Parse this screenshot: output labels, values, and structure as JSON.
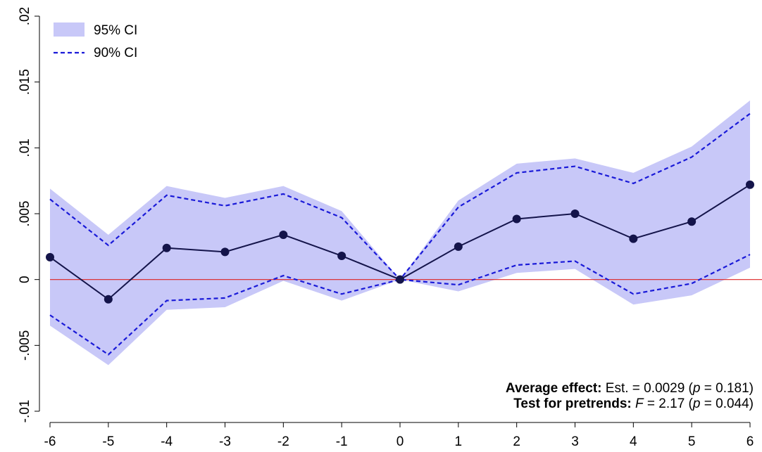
{
  "chart_data": {
    "type": "line",
    "title": "",
    "xlabel": "",
    "ylabel": "",
    "x": [
      -6,
      -5,
      -4,
      -3,
      -2,
      -1,
      0,
      1,
      2,
      3,
      4,
      5,
      6
    ],
    "xlim": [
      -6,
      6
    ],
    "ylim": [
      -0.01,
      0.02
    ],
    "x_ticks": [
      -6,
      -5,
      -4,
      -3,
      -2,
      -1,
      0,
      1,
      2,
      3,
      4,
      5,
      6
    ],
    "x_tick_labels": [
      "-6",
      "-5",
      "-4",
      "-3",
      "-2",
      "-1",
      "0",
      "1",
      "2",
      "3",
      "4",
      "5",
      "6"
    ],
    "y_ticks": [
      -0.01,
      -0.005,
      0,
      0.005,
      0.01,
      0.015,
      0.02
    ],
    "y_tick_labels": [
      "-.01",
      "-.005",
      "0",
      ".005",
      ".01",
      ".015",
      ".02"
    ],
    "grid": false,
    "legend_position": "top-left",
    "reference_line": {
      "y": 0,
      "color": "#dd2222"
    },
    "series": [
      {
        "kind": "point_estimate",
        "values": [
          0.0017,
          -0.0015,
          0.0024,
          0.0021,
          0.0034,
          0.0018,
          0.0,
          0.0025,
          0.0046,
          0.005,
          0.0031,
          0.0044,
          0.0072
        ],
        "color": "#14144a"
      },
      {
        "name": "95% CI",
        "kind": "band",
        "lower": [
          -0.0035,
          -0.0065,
          -0.0023,
          -0.0021,
          -0.0001,
          -0.0016,
          0.0,
          -0.0009,
          0.0005,
          0.0008,
          -0.0019,
          -0.0012,
          0.0009
        ],
        "upper": [
          0.0069,
          0.0034,
          0.0071,
          0.0062,
          0.0071,
          0.0052,
          0.0,
          0.006,
          0.0088,
          0.0092,
          0.0081,
          0.0101,
          0.0136
        ],
        "color": "#c8c8f8"
      },
      {
        "name": "90% CI",
        "kind": "dashed_bounds",
        "lower": [
          -0.0027,
          -0.0057,
          -0.0016,
          -0.0014,
          0.0003,
          -0.0011,
          0.0,
          -0.0004,
          0.0011,
          0.0014,
          -0.0011,
          -0.0003,
          0.0019
        ],
        "upper": [
          0.0061,
          0.0026,
          0.0064,
          0.0056,
          0.0065,
          0.0047,
          0.0,
          0.0055,
          0.0081,
          0.0086,
          0.0073,
          0.0093,
          0.0126
        ],
        "color": "#1a1ad8"
      }
    ],
    "annotations": [
      {
        "bold": "Average effect:",
        "rest": " Est. = 0.0029 (",
        "italic": "p",
        "tail": " = 0.181)"
      },
      {
        "bold": "Test for pretrends:",
        "rest": " ",
        "italic": "F",
        "tail": " = 2.17 (",
        "italic2": "p",
        "tail2": " = 0.044)"
      }
    ]
  }
}
